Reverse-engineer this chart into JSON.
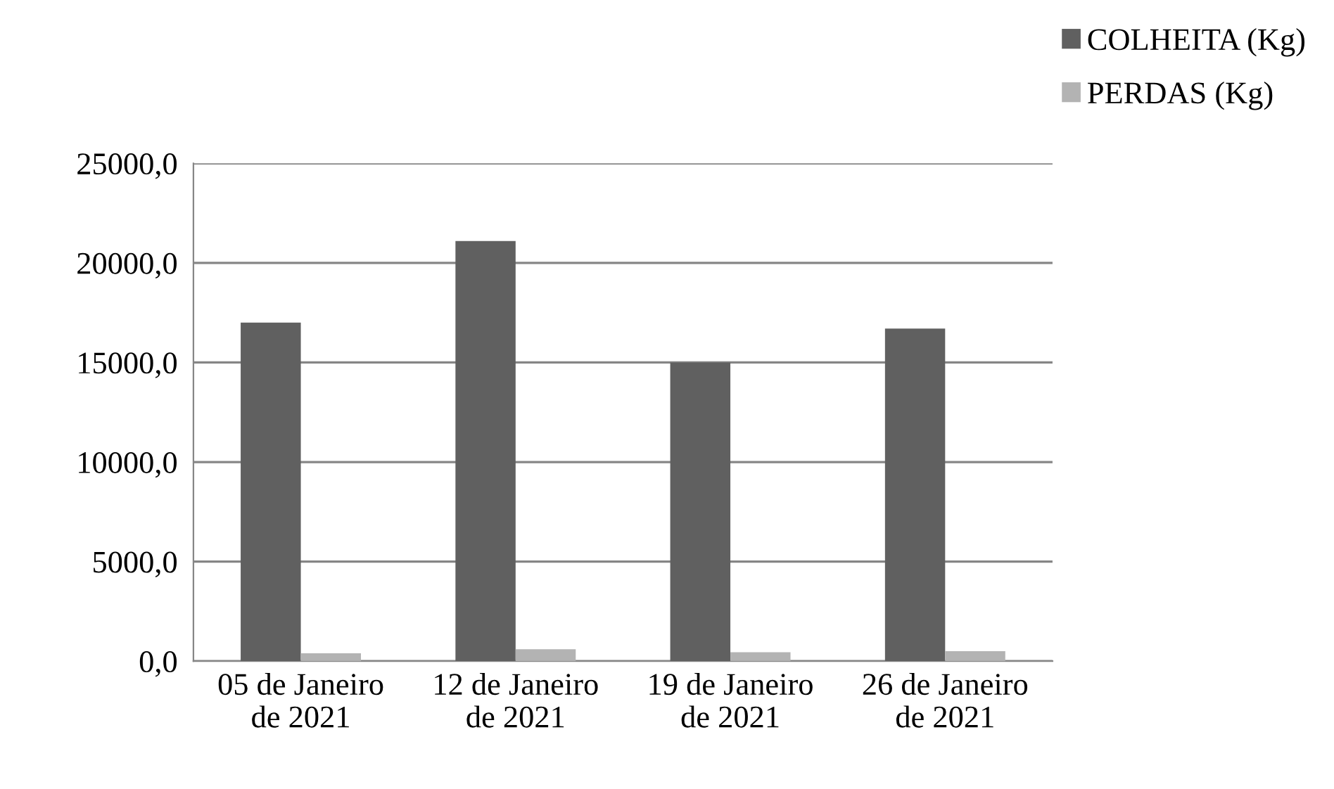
{
  "chart_data": {
    "type": "bar",
    "categories": [
      "05 de Janeiro\nde 2021",
      "12 de Janeiro\nde 2021",
      "19 de Janeiro\nde 2021",
      "26 de Janeiro\nde 2021"
    ],
    "series": [
      {
        "name": "COLHEITA (Kg)",
        "color": "#606060",
        "values": [
          17000,
          21100,
          15000,
          16700
        ]
      },
      {
        "name": "PERDAS (Kg)",
        "color": "#b3b3b3",
        "values": [
          400,
          600,
          450,
          500
        ]
      }
    ],
    "ylim": [
      0,
      25000
    ],
    "yticks": [
      {
        "value": 0,
        "label": "0,0"
      },
      {
        "value": 5000,
        "label": "5000,0"
      },
      {
        "value": 10000,
        "label": "10000,0"
      },
      {
        "value": 15000,
        "label": "15000,0"
      },
      {
        "value": 20000,
        "label": "20000,0"
      },
      {
        "value": 25000,
        "label": "25000,0"
      }
    ],
    "grid": "y",
    "legend": "top right"
  }
}
